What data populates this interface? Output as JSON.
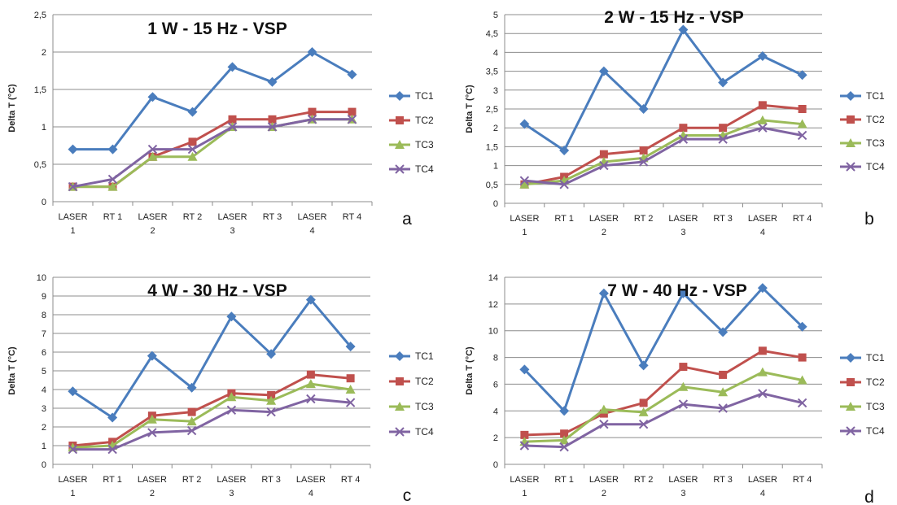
{
  "colors": {
    "TC1": "#4a7dbd",
    "TC2": "#c0504d",
    "TC3": "#9bbb59",
    "TC4": "#8064a2",
    "grid": "#8c8c8c"
  },
  "chart_data": [
    {
      "type": "line",
      "title": "1 W - 15 Hz - VSP",
      "panel_label": "a",
      "ylabel": "Delta T (°C)",
      "categories": [
        [
          "LASER",
          "1"
        ],
        [
          "RT 1"
        ],
        [
          "LASER",
          "2"
        ],
        [
          "RT 2"
        ],
        [
          "LASER",
          "3"
        ],
        [
          "RT 3"
        ],
        [
          "LASER",
          "4"
        ],
        [
          "RT 4"
        ]
      ],
      "ylim": [
        0,
        2.5
      ],
      "yticks": [
        "0",
        "0,5",
        "1",
        "1,5",
        "2",
        "2,5"
      ],
      "grid": true,
      "legend": "right",
      "series": [
        {
          "name": "TC1",
          "marker": "diamond",
          "values": [
            0.7,
            0.7,
            1.4,
            1.2,
            1.8,
            1.6,
            2.0,
            1.7
          ]
        },
        {
          "name": "TC2",
          "marker": "square",
          "values": [
            0.2,
            0.2,
            0.6,
            0.8,
            1.1,
            1.1,
            1.2,
            1.2
          ]
        },
        {
          "name": "TC3",
          "marker": "triangle",
          "values": [
            0.2,
            0.2,
            0.6,
            0.6,
            1.0,
            1.0,
            1.1,
            1.1
          ]
        },
        {
          "name": "TC4",
          "marker": "x",
          "values": [
            0.2,
            0.3,
            0.7,
            0.7,
            1.0,
            1.0,
            1.1,
            1.1
          ]
        }
      ]
    },
    {
      "type": "line",
      "title": "2 W - 15 Hz - VSP",
      "panel_label": "b",
      "ylabel": "Delta T (°C)",
      "categories": [
        [
          "LASER",
          "1"
        ],
        [
          "RT 1"
        ],
        [
          "LASER",
          "2"
        ],
        [
          "RT 2"
        ],
        [
          "LASER",
          "3"
        ],
        [
          "RT 3"
        ],
        [
          "LASER",
          "4"
        ],
        [
          "RT 4"
        ]
      ],
      "ylim": [
        0,
        5
      ],
      "yticks": [
        "0",
        "0,5",
        "1",
        "1,5",
        "2",
        "2,5",
        "3",
        "3,5",
        "4",
        "4,5",
        "5"
      ],
      "grid": true,
      "legend": "right",
      "series": [
        {
          "name": "TC1",
          "marker": "diamond",
          "values": [
            2.1,
            1.4,
            3.5,
            2.5,
            4.6,
            3.2,
            3.9,
            3.4
          ]
        },
        {
          "name": "TC2",
          "marker": "square",
          "values": [
            0.5,
            0.7,
            1.3,
            1.4,
            2.0,
            2.0,
            2.6,
            2.5
          ]
        },
        {
          "name": "TC3",
          "marker": "triangle",
          "values": [
            0.5,
            0.6,
            1.1,
            1.2,
            1.8,
            1.8,
            2.2,
            2.1
          ]
        },
        {
          "name": "TC4",
          "marker": "x",
          "values": [
            0.6,
            0.5,
            1.0,
            1.1,
            1.7,
            1.7,
            2.0,
            1.8
          ]
        }
      ]
    },
    {
      "type": "line",
      "title": "4 W - 30 Hz - VSP",
      "panel_label": "c",
      "ylabel": "Delta T (°C)",
      "categories": [
        [
          "LASER",
          "1"
        ],
        [
          "RT 1"
        ],
        [
          "LASER",
          "2"
        ],
        [
          "RT 2"
        ],
        [
          "LASER",
          "3"
        ],
        [
          "RT 3"
        ],
        [
          "LASER",
          "4"
        ],
        [
          "RT 4"
        ]
      ],
      "ylim": [
        0,
        10
      ],
      "yticks": [
        "0",
        "1",
        "2",
        "3",
        "4",
        "5",
        "6",
        "7",
        "8",
        "9",
        "10"
      ],
      "grid": true,
      "legend": "right",
      "series": [
        {
          "name": "TC1",
          "marker": "diamond",
          "values": [
            3.9,
            2.5,
            5.8,
            4.1,
            7.9,
            5.9,
            8.8,
            6.3
          ]
        },
        {
          "name": "TC2",
          "marker": "square",
          "values": [
            1.0,
            1.2,
            2.6,
            2.8,
            3.8,
            3.7,
            4.8,
            4.6
          ]
        },
        {
          "name": "TC3",
          "marker": "triangle",
          "values": [
            0.9,
            1.0,
            2.4,
            2.3,
            3.6,
            3.4,
            4.3,
            4.0
          ]
        },
        {
          "name": "TC4",
          "marker": "x",
          "values": [
            0.8,
            0.8,
            1.7,
            1.8,
            2.9,
            2.8,
            3.5,
            3.3
          ]
        }
      ]
    },
    {
      "type": "line",
      "title": "7 W - 40 Hz - VSP",
      "panel_label": "d",
      "ylabel": "Delta T (°C)",
      "categories": [
        [
          "LASER",
          "1"
        ],
        [
          "RT 1"
        ],
        [
          "LASER",
          "2"
        ],
        [
          "RT 2"
        ],
        [
          "LASER",
          "3"
        ],
        [
          "RT 3"
        ],
        [
          "LASER",
          "4"
        ],
        [
          "RT 4"
        ]
      ],
      "ylim": [
        0,
        14
      ],
      "yticks": [
        "0",
        "2",
        "4",
        "6",
        "8",
        "10",
        "12",
        "14"
      ],
      "grid": true,
      "legend": "right",
      "series": [
        {
          "name": "TC1",
          "marker": "diamond",
          "values": [
            7.1,
            4.0,
            12.8,
            7.4,
            12.8,
            9.9,
            13.2,
            10.3
          ]
        },
        {
          "name": "TC2",
          "marker": "square",
          "values": [
            2.2,
            2.3,
            3.8,
            4.6,
            7.3,
            6.7,
            8.5,
            8.0
          ]
        },
        {
          "name": "TC3",
          "marker": "triangle",
          "values": [
            1.7,
            1.8,
            4.1,
            3.9,
            5.8,
            5.4,
            6.9,
            6.3
          ]
        },
        {
          "name": "TC4",
          "marker": "x",
          "values": [
            1.4,
            1.3,
            3.0,
            3.0,
            4.5,
            4.2,
            5.3,
            4.6
          ]
        }
      ]
    }
  ]
}
